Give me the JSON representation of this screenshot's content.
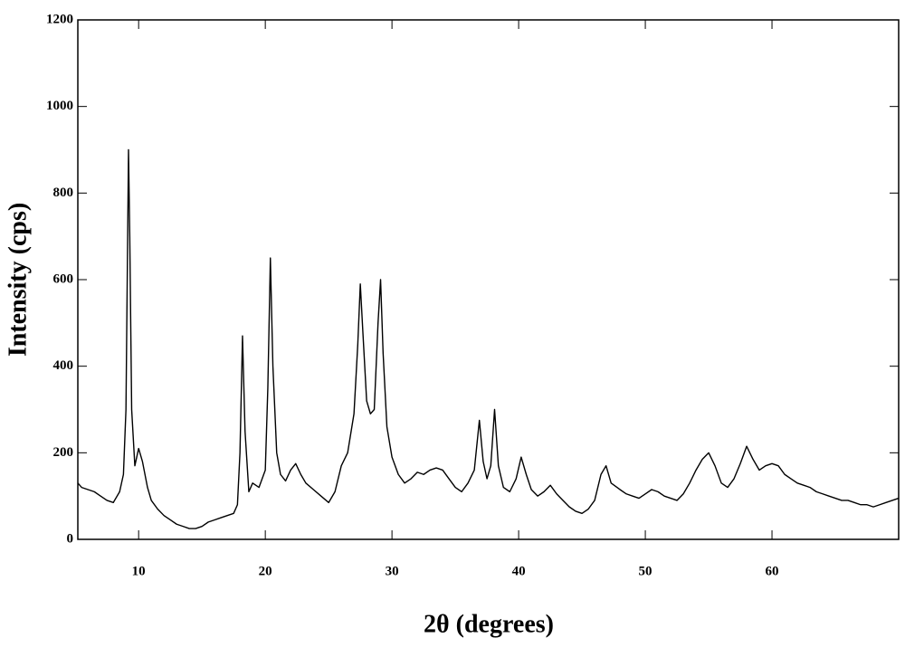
{
  "chart_data": {
    "type": "line",
    "x_label": "2θ (degrees)",
    "y_label": "Intensity  (cps)",
    "xlim": [
      5.2,
      70
    ],
    "ylim": [
      0,
      1200
    ],
    "xticks": [
      10,
      20,
      30,
      40,
      50,
      60
    ],
    "yticks": [
      0,
      200,
      400,
      600,
      800,
      1000,
      1200
    ],
    "series": [
      {
        "color": "#000000",
        "x": [
          5.2,
          5.5,
          6,
          6.5,
          7,
          7.5,
          8,
          8.5,
          8.8,
          9.0,
          9.1,
          9.2,
          9.3,
          9.45,
          9.7,
          10.0,
          10.3,
          10.7,
          11,
          11.5,
          12,
          12.5,
          13,
          13.5,
          14,
          14.5,
          15,
          15.5,
          16,
          16.5,
          17,
          17.5,
          17.8,
          18.0,
          18.2,
          18.4,
          18.7,
          19,
          19.5,
          20,
          20.2,
          20.4,
          20.6,
          20.9,
          21.2,
          21.6,
          22,
          22.4,
          22.8,
          23.2,
          23.8,
          24.4,
          25,
          25.5,
          26,
          26.5,
          27,
          27.3,
          27.5,
          27.7,
          28,
          28.3,
          28.6,
          28.9,
          29.1,
          29.3,
          29.6,
          30,
          30.5,
          31,
          31.5,
          32,
          32.5,
          33,
          33.5,
          34,
          34.5,
          35,
          35.5,
          36,
          36.5,
          36.9,
          37.2,
          37.5,
          37.8,
          38.1,
          38.4,
          38.8,
          39.3,
          39.8,
          40.2,
          40.6,
          41,
          41.5,
          42,
          42.5,
          43,
          43.5,
          44,
          44.5,
          45,
          45.5,
          46,
          46.5,
          46.9,
          47.3,
          48,
          48.5,
          49,
          49.5,
          50,
          50.5,
          51,
          51.5,
          52,
          52.5,
          53,
          53.5,
          54,
          54.5,
          55,
          55.5,
          56,
          56.5,
          57,
          57.5,
          58,
          58.5,
          59,
          59.5,
          60,
          60.5,
          61,
          61.5,
          62,
          62.5,
          63,
          63.5,
          64,
          64.5,
          65,
          65.5,
          66,
          66.5,
          67,
          67.5,
          68,
          68.5,
          69,
          69.5,
          70
        ],
        "values": [
          130,
          120,
          115,
          110,
          100,
          90,
          85,
          110,
          150,
          300,
          600,
          900,
          700,
          300,
          170,
          210,
          180,
          120,
          90,
          70,
          55,
          45,
          35,
          30,
          25,
          25,
          30,
          40,
          45,
          50,
          55,
          60,
          80,
          200,
          470,
          250,
          110,
          130,
          120,
          160,
          350,
          650,
          400,
          200,
          150,
          135,
          160,
          175,
          150,
          130,
          115,
          100,
          85,
          110,
          170,
          200,
          290,
          450,
          590,
          480,
          320,
          290,
          300,
          500,
          600,
          430,
          260,
          190,
          150,
          130,
          140,
          155,
          150,
          160,
          165,
          160,
          140,
          120,
          110,
          130,
          160,
          275,
          180,
          140,
          170,
          300,
          170,
          120,
          110,
          140,
          190,
          150,
          115,
          100,
          110,
          125,
          105,
          90,
          75,
          65,
          60,
          70,
          90,
          150,
          170,
          130,
          115,
          105,
          100,
          95,
          105,
          115,
          110,
          100,
          95,
          90,
          105,
          130,
          160,
          185,
          200,
          170,
          130,
          120,
          140,
          175,
          215,
          185,
          160,
          170,
          175,
          170,
          150,
          140,
          130,
          125,
          120,
          110,
          105,
          100,
          95,
          90,
          90,
          85,
          80,
          80,
          75,
          80,
          85,
          90,
          95
        ]
      }
    ]
  }
}
